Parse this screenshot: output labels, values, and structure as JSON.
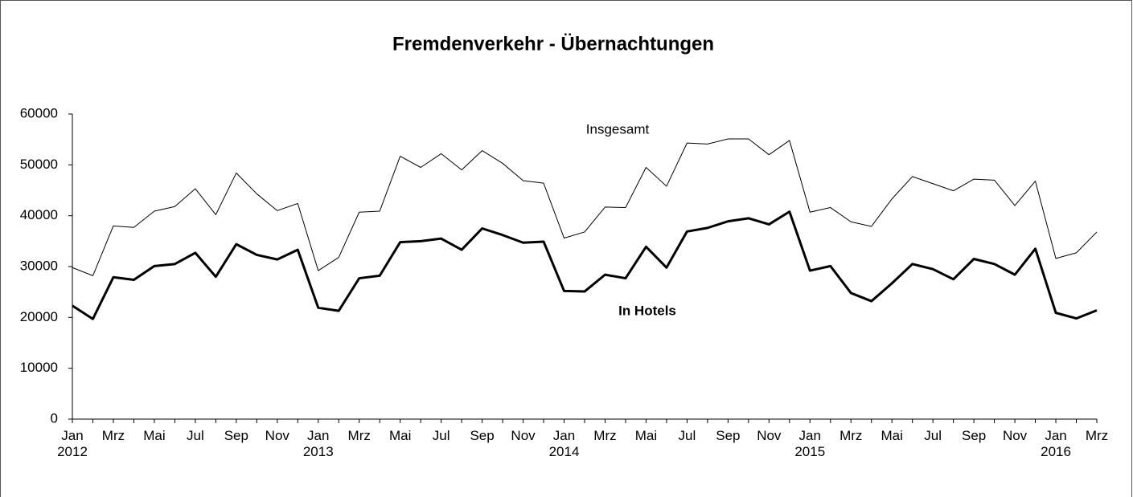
{
  "chart_data": {
    "type": "line",
    "title": "Fremdenverkehr - Übernachtungen",
    "categories": [
      "Jan 2012",
      null,
      "Mrz",
      null,
      "Mai",
      null,
      "Jul",
      null,
      "Sep",
      null,
      "Nov",
      null,
      "Jan 2013",
      null,
      "Mrz",
      null,
      "Mai",
      null,
      "Jul",
      null,
      "Sep",
      null,
      "Nov",
      null,
      "Jan 2014",
      null,
      "Mrz",
      null,
      "Mai",
      null,
      "Jul",
      null,
      "Sep",
      null,
      "Nov",
      null,
      "Jan 2015",
      null,
      "Mrz",
      null,
      "Mai",
      null,
      "Jul",
      null,
      "Sep",
      null,
      "Nov",
      null,
      "Jan 2016",
      null,
      "Mrz"
    ],
    "series": [
      {
        "name": "Insgesamt",
        "color": "#000000",
        "linewidth": 1,
        "values": [
          29800,
          28200,
          38000,
          37700,
          40900,
          41800,
          45300,
          40200,
          48400,
          44300,
          41000,
          42400,
          29200,
          31800,
          40700,
          40900,
          51700,
          49500,
          52200,
          49000,
          52800,
          50300,
          46900,
          46400,
          35600,
          36800,
          41700,
          41600,
          49500,
          45800,
          54300,
          54100,
          55100,
          55100,
          52000,
          54800,
          40700,
          41600,
          38800,
          37900,
          43300,
          47700,
          46300,
          44900,
          47200,
          47000,
          42000,
          46800,
          31600,
          32700,
          36800
        ]
      },
      {
        "name": "In Hotels",
        "color": "#000000",
        "linewidth": 3,
        "values": [
          22300,
          19700,
          27900,
          27400,
          30100,
          30500,
          32700,
          28000,
          34400,
          32300,
          31400,
          33300,
          21900,
          21300,
          27700,
          28200,
          34800,
          35000,
          35500,
          33300,
          37500,
          36200,
          34700,
          34900,
          25200,
          25100,
          28400,
          27700,
          33900,
          29800,
          36900,
          37600,
          38900,
          39500,
          38300,
          40800,
          29200,
          30100,
          24800,
          23200,
          26700,
          30500,
          29500,
          27500,
          31500,
          30500,
          28400,
          33500,
          20900,
          19800,
          21400
        ]
      }
    ],
    "ylim": [
      0,
      60000
    ],
    "yticks": [
      0,
      10000,
      20000,
      30000,
      40000,
      50000,
      60000
    ],
    "grid": false
  }
}
